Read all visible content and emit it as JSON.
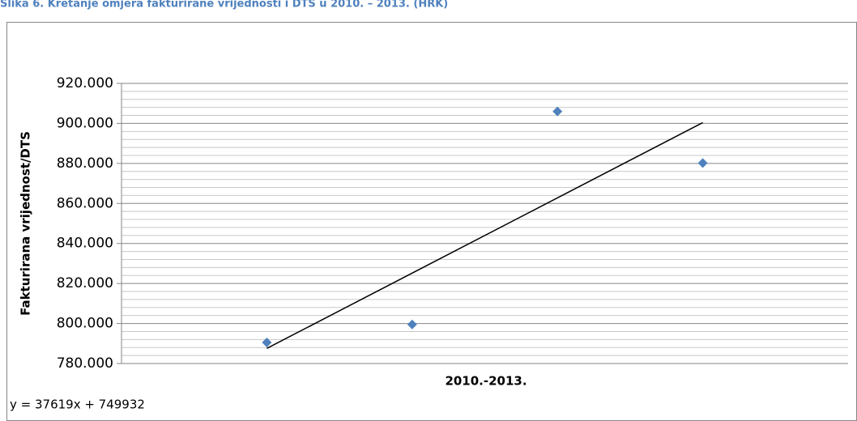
{
  "chart_data": {
    "type": "scatter",
    "title": "Slika 6. Kretanje omjera fakturirane vrijednosti i DTS u 2010. – 2013. (HRK)",
    "x_label": "2010.-2013.",
    "y_label": "Fakturirana vrijednost/DTS",
    "series": [
      {
        "name": "Fakturirana vrijednost/DTS",
        "color": "#4f81bd",
        "x": [
          1,
          2,
          3,
          4
        ],
        "values": [
          790500,
          799500,
          906000,
          880200
        ]
      }
    ],
    "trendline": {
      "slope": 37619,
      "intercept": 749932,
      "label": "y = 37619x + 749932",
      "color": "#000000"
    },
    "xlim": [
      0,
      5
    ],
    "ylim": [
      780000,
      920000
    ],
    "yticks": [
      {
        "value": 780000,
        "label": "780.000"
      },
      {
        "value": 800000,
        "label": "800.000"
      },
      {
        "value": 820000,
        "label": "820.000"
      },
      {
        "value": 840000,
        "label": "840.000"
      },
      {
        "value": 860000,
        "label": "860.000"
      },
      {
        "value": 880000,
        "label": "880.000"
      },
      {
        "value": 900000,
        "label": "900.000"
      },
      {
        "value": 920000,
        "label": "920.000"
      }
    ],
    "grid": true,
    "minor_grid_divisions": 5
  }
}
